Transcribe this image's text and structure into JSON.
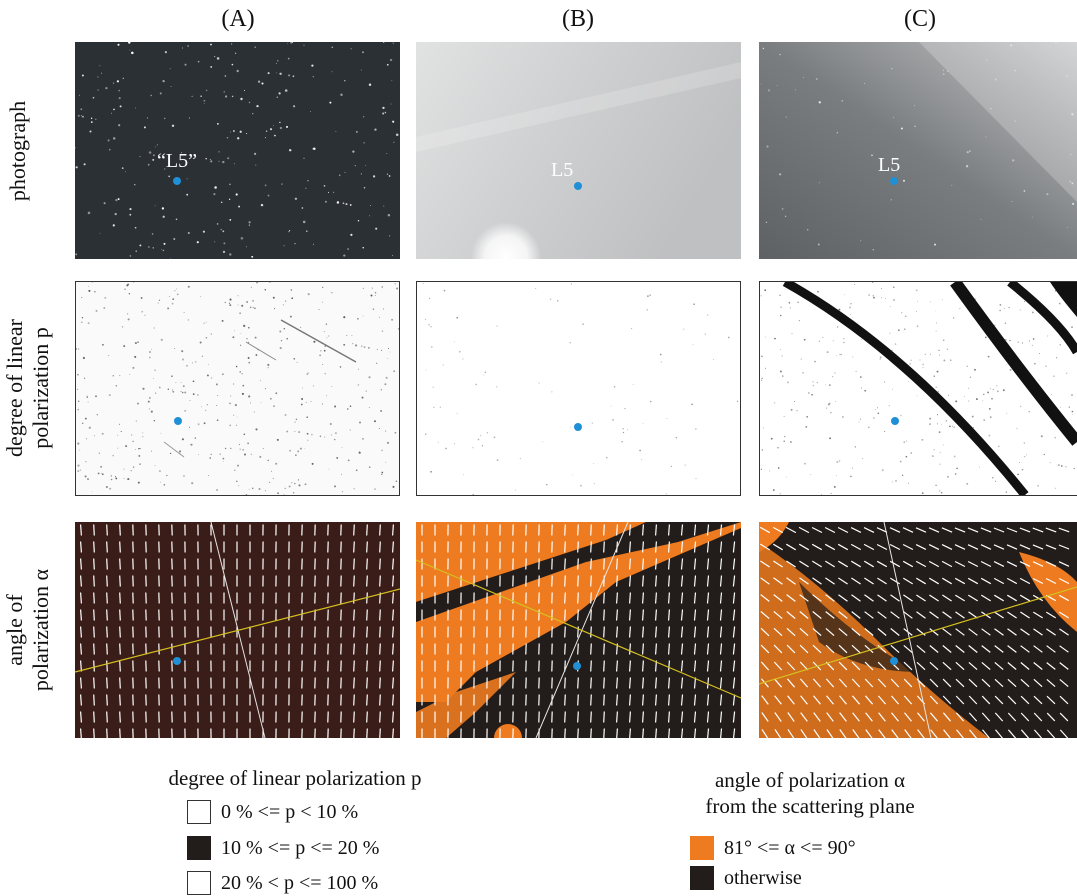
{
  "columns": [
    "(A)",
    "(B)",
    "(C)"
  ],
  "rows": [
    {
      "line1": "photograph",
      "line2": ""
    },
    {
      "line1": "degree of linear",
      "line2": "polarization p"
    },
    {
      "line1": "angle of",
      "line2": "polarization α"
    }
  ],
  "panel_labels": {
    "a": "“L5”",
    "b": "L5",
    "c": "L5"
  },
  "legend_p": {
    "title": "degree of linear polarization p",
    "items": [
      {
        "text": "0 % <= p < 10 %",
        "color": "#ffffff"
      },
      {
        "text": "10 % <= p <= 20 %",
        "color": "#221c1a"
      },
      {
        "text": "20 % < p <= 100 %",
        "color": "#ffffff"
      }
    ]
  },
  "legend_alpha": {
    "title1": "angle of polarization α",
    "title2": "from the scattering plane",
    "items": [
      {
        "text": "81° <= α <= 90°",
        "color": "#ee7b1f"
      },
      {
        "text": "otherwise",
        "color": "#221c1a"
      }
    ]
  },
  "colors": {
    "marker": "#1f8fd6",
    "orange": "#ee7b1f",
    "dark": "#221c1a",
    "brown": "#3a1d18",
    "ecliptic": "#d4c020"
  }
}
